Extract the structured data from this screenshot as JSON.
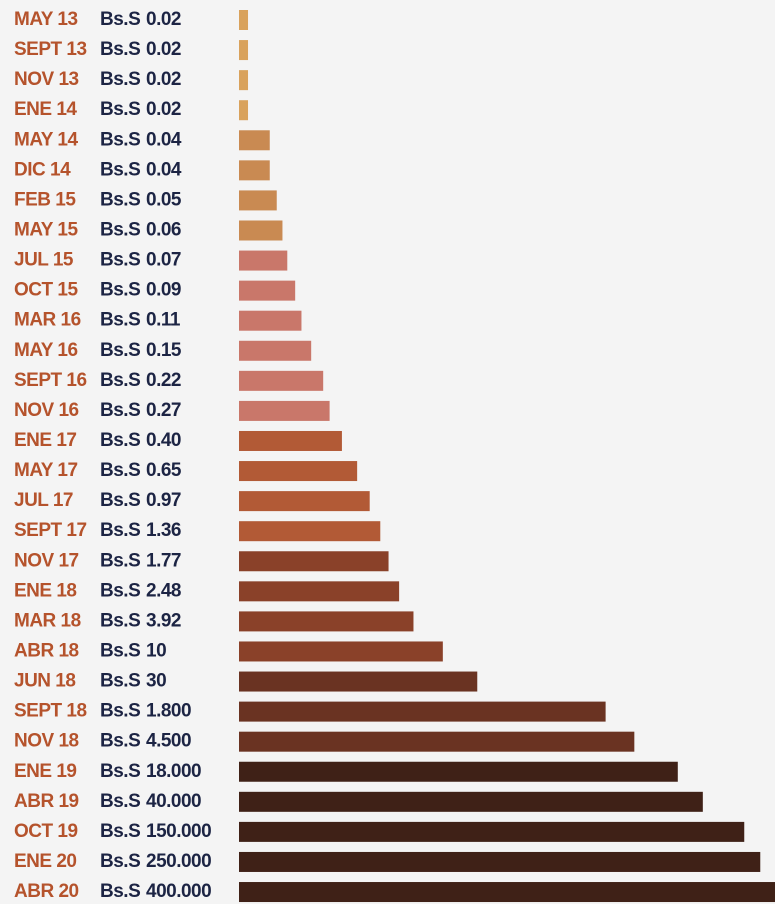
{
  "chart_data": {
    "type": "bar",
    "orientation": "horizontal",
    "log_scale": true,
    "currency": "Bs.S",
    "categories": [
      "MAY 13",
      "SEPT 13",
      "NOV 13",
      "ENE 14",
      "MAY 14",
      "DIC 14",
      "FEB 15",
      "MAY 15",
      "JUL 15",
      "OCT 15",
      "MAR 16",
      "MAY 16",
      "SEPT 16",
      "NOV 16",
      "ENE 17",
      "MAY 17",
      "JUL 17",
      "SEPT 17",
      "NOV 17",
      "ENE 18",
      "MAR 18",
      "ABR 18",
      "JUN 18",
      "SEPT 18",
      "NOV 18",
      "ENE 19",
      "ABR 19",
      "OCT 19",
      "ENE 20",
      "ABR 20"
    ],
    "values": [
      0.02,
      0.02,
      0.02,
      0.02,
      0.04,
      0.04,
      0.05,
      0.06,
      0.07,
      0.09,
      0.11,
      0.15,
      0.22,
      0.27,
      0.4,
      0.65,
      0.97,
      1.36,
      1.77,
      2.48,
      3.92,
      10,
      30,
      1800,
      4500,
      18000,
      40000,
      150000,
      250000,
      400000
    ],
    "value_labels": [
      "0.02",
      "0.02",
      "0.02",
      "0.02",
      "0.04",
      "0.04",
      "0.05",
      "0.06",
      "0.07",
      "0.09",
      "0.11",
      "0.15",
      "0.22",
      "0.27",
      "0.40",
      "0.65",
      "0.97",
      "1.36",
      "1.77",
      "2.48",
      "3.92",
      "10",
      "30",
      "1.800",
      "4.500",
      "18.000",
      "40.000",
      "150.000",
      "250.000",
      "400.000"
    ],
    "colors": [
      "#d9a25c",
      "#d9a25c",
      "#d9a25c",
      "#d9a25c",
      "#c98a52",
      "#c98a52",
      "#c98a52",
      "#c98a52",
      "#c9776a",
      "#c9776a",
      "#c9776a",
      "#c9776a",
      "#c9776a",
      "#c9776a",
      "#b25a36",
      "#b25a36",
      "#b25a36",
      "#b25a36",
      "#8a4129",
      "#8a4129",
      "#8a4129",
      "#8a4129",
      "#6a3322",
      "#6a3322",
      "#6a3322",
      "#3f2117",
      "#3f2117",
      "#3f2117",
      "#3f2117",
      "#3f2117"
    ],
    "xlim": [
      0.015,
      400000
    ]
  }
}
